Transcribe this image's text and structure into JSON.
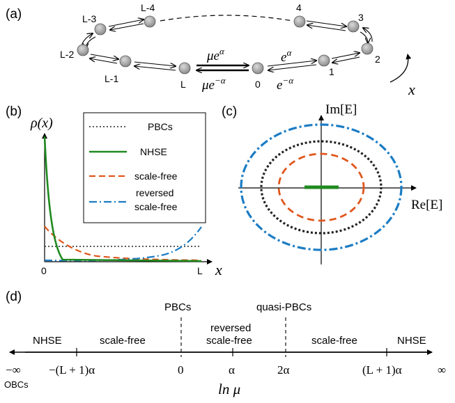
{
  "panels": {
    "a": "(a)",
    "b": "(b)",
    "c": "(c)",
    "d": "(d)"
  },
  "ring": {
    "node_labels": [
      "L-4",
      "L-3",
      "L-2",
      "L-1",
      "L",
      "0",
      "1",
      "2",
      "3",
      "4"
    ],
    "hop_center_forward": "μe",
    "hop_center_forward_sup": "α",
    "hop_center_backward": "μe",
    "hop_center_backward_sup": "−α",
    "hop_right_forward": "e",
    "hop_right_forward_sup": "α",
    "hop_right_backward": "e",
    "hop_right_backward_sup": "−α",
    "direction_label": "x"
  },
  "density_plot": {
    "ylabel": "ρ(x)",
    "xlabel": "x",
    "tick_start": "0",
    "tick_end": "L",
    "legend": [
      "PBCs",
      "NHSE",
      "scale-free",
      "reversed",
      "scale-free"
    ],
    "colors": {
      "pbc": "#222222",
      "nhse": "#1f8a1f",
      "scale_free": "#e0561c",
      "reversed": "#1b7cc4"
    }
  },
  "spectrum_plot": {
    "ylabel": "Im[E]",
    "xlabel": "Re[E]"
  },
  "phase_axis": {
    "regions": [
      "NHSE",
      "scale-free",
      "PBCs",
      "reversed",
      "scale-free",
      "quasi-PBCs",
      "scale-free",
      "NHSE"
    ],
    "ticks": [
      "−∞",
      "−(L + 1)α",
      "0",
      "α",
      "2α",
      "(L + 1)α",
      "∞"
    ],
    "obc_label": "OBCs",
    "axis_label": "ln μ"
  }
}
